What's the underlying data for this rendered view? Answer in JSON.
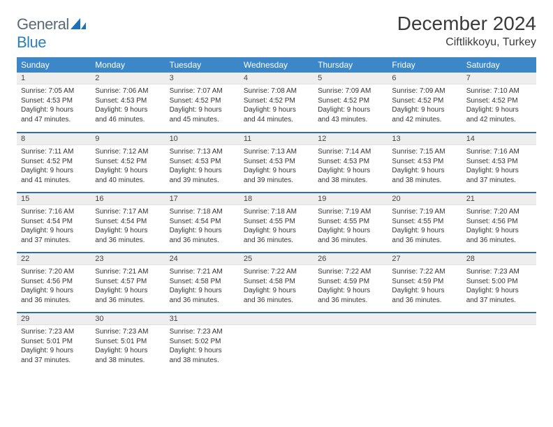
{
  "brand": {
    "part1": "General",
    "part2": "Blue"
  },
  "header": {
    "title": "December 2024",
    "location": "Ciftlikkoyu, Turkey"
  },
  "colors": {
    "header_bg": "#3b87c8",
    "header_text": "#ffffff",
    "daynum_bg": "#eeeeee",
    "row_border": "#2f6fa8",
    "logo_gray": "#5a6a78",
    "logo_blue": "#2a7fbf"
  },
  "weekdays": [
    "Sunday",
    "Monday",
    "Tuesday",
    "Wednesday",
    "Thursday",
    "Friday",
    "Saturday"
  ],
  "weeks": [
    [
      {
        "num": "1",
        "sunrise": "Sunrise: 7:05 AM",
        "sunset": "Sunset: 4:53 PM",
        "daylight1": "Daylight: 9 hours",
        "daylight2": "and 47 minutes."
      },
      {
        "num": "2",
        "sunrise": "Sunrise: 7:06 AM",
        "sunset": "Sunset: 4:53 PM",
        "daylight1": "Daylight: 9 hours",
        "daylight2": "and 46 minutes."
      },
      {
        "num": "3",
        "sunrise": "Sunrise: 7:07 AM",
        "sunset": "Sunset: 4:52 PM",
        "daylight1": "Daylight: 9 hours",
        "daylight2": "and 45 minutes."
      },
      {
        "num": "4",
        "sunrise": "Sunrise: 7:08 AM",
        "sunset": "Sunset: 4:52 PM",
        "daylight1": "Daylight: 9 hours",
        "daylight2": "and 44 minutes."
      },
      {
        "num": "5",
        "sunrise": "Sunrise: 7:09 AM",
        "sunset": "Sunset: 4:52 PM",
        "daylight1": "Daylight: 9 hours",
        "daylight2": "and 43 minutes."
      },
      {
        "num": "6",
        "sunrise": "Sunrise: 7:09 AM",
        "sunset": "Sunset: 4:52 PM",
        "daylight1": "Daylight: 9 hours",
        "daylight2": "and 42 minutes."
      },
      {
        "num": "7",
        "sunrise": "Sunrise: 7:10 AM",
        "sunset": "Sunset: 4:52 PM",
        "daylight1": "Daylight: 9 hours",
        "daylight2": "and 42 minutes."
      }
    ],
    [
      {
        "num": "8",
        "sunrise": "Sunrise: 7:11 AM",
        "sunset": "Sunset: 4:52 PM",
        "daylight1": "Daylight: 9 hours",
        "daylight2": "and 41 minutes."
      },
      {
        "num": "9",
        "sunrise": "Sunrise: 7:12 AM",
        "sunset": "Sunset: 4:52 PM",
        "daylight1": "Daylight: 9 hours",
        "daylight2": "and 40 minutes."
      },
      {
        "num": "10",
        "sunrise": "Sunrise: 7:13 AM",
        "sunset": "Sunset: 4:53 PM",
        "daylight1": "Daylight: 9 hours",
        "daylight2": "and 39 minutes."
      },
      {
        "num": "11",
        "sunrise": "Sunrise: 7:13 AM",
        "sunset": "Sunset: 4:53 PM",
        "daylight1": "Daylight: 9 hours",
        "daylight2": "and 39 minutes."
      },
      {
        "num": "12",
        "sunrise": "Sunrise: 7:14 AM",
        "sunset": "Sunset: 4:53 PM",
        "daylight1": "Daylight: 9 hours",
        "daylight2": "and 38 minutes."
      },
      {
        "num": "13",
        "sunrise": "Sunrise: 7:15 AM",
        "sunset": "Sunset: 4:53 PM",
        "daylight1": "Daylight: 9 hours",
        "daylight2": "and 38 minutes."
      },
      {
        "num": "14",
        "sunrise": "Sunrise: 7:16 AM",
        "sunset": "Sunset: 4:53 PM",
        "daylight1": "Daylight: 9 hours",
        "daylight2": "and 37 minutes."
      }
    ],
    [
      {
        "num": "15",
        "sunrise": "Sunrise: 7:16 AM",
        "sunset": "Sunset: 4:54 PM",
        "daylight1": "Daylight: 9 hours",
        "daylight2": "and 37 minutes."
      },
      {
        "num": "16",
        "sunrise": "Sunrise: 7:17 AM",
        "sunset": "Sunset: 4:54 PM",
        "daylight1": "Daylight: 9 hours",
        "daylight2": "and 36 minutes."
      },
      {
        "num": "17",
        "sunrise": "Sunrise: 7:18 AM",
        "sunset": "Sunset: 4:54 PM",
        "daylight1": "Daylight: 9 hours",
        "daylight2": "and 36 minutes."
      },
      {
        "num": "18",
        "sunrise": "Sunrise: 7:18 AM",
        "sunset": "Sunset: 4:55 PM",
        "daylight1": "Daylight: 9 hours",
        "daylight2": "and 36 minutes."
      },
      {
        "num": "19",
        "sunrise": "Sunrise: 7:19 AM",
        "sunset": "Sunset: 4:55 PM",
        "daylight1": "Daylight: 9 hours",
        "daylight2": "and 36 minutes."
      },
      {
        "num": "20",
        "sunrise": "Sunrise: 7:19 AM",
        "sunset": "Sunset: 4:55 PM",
        "daylight1": "Daylight: 9 hours",
        "daylight2": "and 36 minutes."
      },
      {
        "num": "21",
        "sunrise": "Sunrise: 7:20 AM",
        "sunset": "Sunset: 4:56 PM",
        "daylight1": "Daylight: 9 hours",
        "daylight2": "and 36 minutes."
      }
    ],
    [
      {
        "num": "22",
        "sunrise": "Sunrise: 7:20 AM",
        "sunset": "Sunset: 4:56 PM",
        "daylight1": "Daylight: 9 hours",
        "daylight2": "and 36 minutes."
      },
      {
        "num": "23",
        "sunrise": "Sunrise: 7:21 AM",
        "sunset": "Sunset: 4:57 PM",
        "daylight1": "Daylight: 9 hours",
        "daylight2": "and 36 minutes."
      },
      {
        "num": "24",
        "sunrise": "Sunrise: 7:21 AM",
        "sunset": "Sunset: 4:58 PM",
        "daylight1": "Daylight: 9 hours",
        "daylight2": "and 36 minutes."
      },
      {
        "num": "25",
        "sunrise": "Sunrise: 7:22 AM",
        "sunset": "Sunset: 4:58 PM",
        "daylight1": "Daylight: 9 hours",
        "daylight2": "and 36 minutes."
      },
      {
        "num": "26",
        "sunrise": "Sunrise: 7:22 AM",
        "sunset": "Sunset: 4:59 PM",
        "daylight1": "Daylight: 9 hours",
        "daylight2": "and 36 minutes."
      },
      {
        "num": "27",
        "sunrise": "Sunrise: 7:22 AM",
        "sunset": "Sunset: 4:59 PM",
        "daylight1": "Daylight: 9 hours",
        "daylight2": "and 36 minutes."
      },
      {
        "num": "28",
        "sunrise": "Sunrise: 7:23 AM",
        "sunset": "Sunset: 5:00 PM",
        "daylight1": "Daylight: 9 hours",
        "daylight2": "and 37 minutes."
      }
    ],
    [
      {
        "num": "29",
        "sunrise": "Sunrise: 7:23 AM",
        "sunset": "Sunset: 5:01 PM",
        "daylight1": "Daylight: 9 hours",
        "daylight2": "and 37 minutes."
      },
      {
        "num": "30",
        "sunrise": "Sunrise: 7:23 AM",
        "sunset": "Sunset: 5:01 PM",
        "daylight1": "Daylight: 9 hours",
        "daylight2": "and 38 minutes."
      },
      {
        "num": "31",
        "sunrise": "Sunrise: 7:23 AM",
        "sunset": "Sunset: 5:02 PM",
        "daylight1": "Daylight: 9 hours",
        "daylight2": "and 38 minutes."
      },
      null,
      null,
      null,
      null
    ]
  ]
}
